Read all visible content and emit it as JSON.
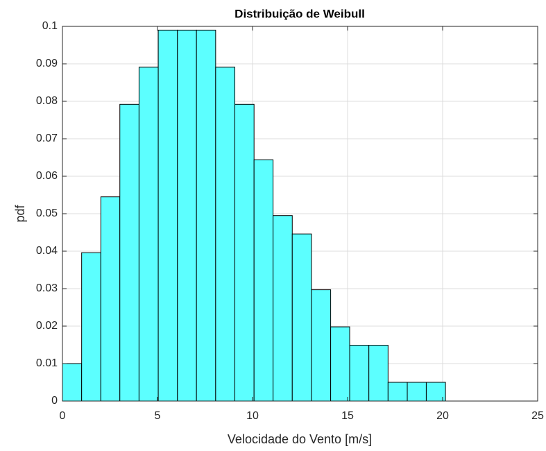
{
  "chart_data": {
    "type": "histogram",
    "title": "Distribuição de Weibull",
    "xlabel": "Velocidade do Vento [m/s]",
    "ylabel": "pdf",
    "bins": [
      0,
      1.01,
      2.02,
      3.02,
      4.03,
      5.04,
      6.05,
      7.05,
      8.06,
      9.07,
      10.08,
      11.08,
      12.09,
      13.1,
      14.11,
      15.11,
      16.12,
      17.13,
      18.14,
      19.14,
      20.15
    ],
    "values": [
      0.01,
      0.0396,
      0.0545,
      0.0792,
      0.0891,
      0.099,
      0.099,
      0.099,
      0.0891,
      0.0792,
      0.0644,
      0.0495,
      0.0446,
      0.0297,
      0.0198,
      0.0149,
      0.0149,
      0.005,
      0.005,
      0.005
    ],
    "color": "#5cffff",
    "xlim": [
      0,
      25
    ],
    "xticks": [
      0,
      5,
      10,
      15,
      20,
      25
    ],
    "ylim": [
      0,
      0.1
    ],
    "yticks": [
      0,
      0.01,
      0.02,
      0.03,
      0.04,
      0.05,
      0.06,
      0.07,
      0.08,
      0.09,
      0.1
    ],
    "grid": true
  }
}
